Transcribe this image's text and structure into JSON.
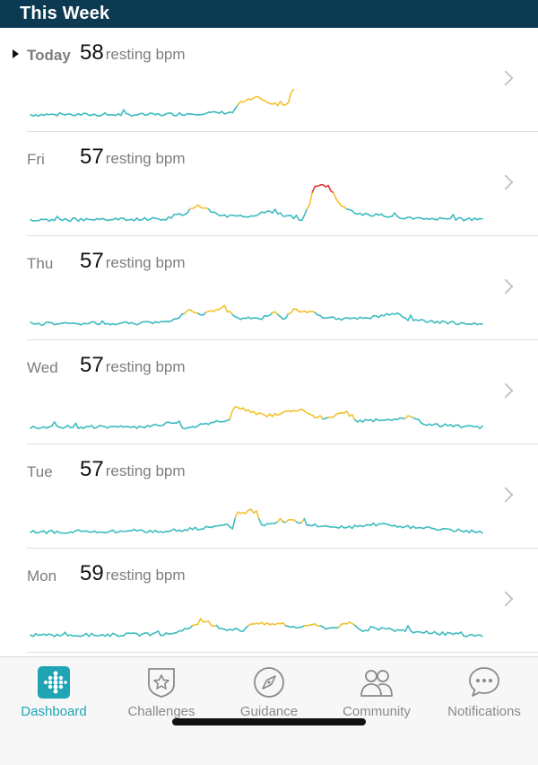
{
  "header": {
    "title": "This Week"
  },
  "days": [
    {
      "label": "Today",
      "is_today": true,
      "bpm": "58",
      "unit": "resting bpm",
      "profile": [
        [
          0,
          0.12
        ],
        [
          0.28,
          0.12
        ],
        [
          0.45,
          0.18
        ],
        [
          0.46,
          0.4
        ],
        [
          0.5,
          0.55
        ],
        [
          0.53,
          0.38
        ],
        [
          0.57,
          0.4
        ],
        [
          0.58,
          0.8
        ],
        [
          0.61,
          0.78
        ],
        [
          0.62,
          0.1
        ],
        [
          0.63,
          0.12
        ]
      ],
      "end": 0.58
    },
    {
      "label": "Fri",
      "is_today": false,
      "bpm": "57",
      "unit": "resting bpm",
      "profile": [
        [
          0,
          0.08
        ],
        [
          0.3,
          0.12
        ],
        [
          0.34,
          0.25
        ],
        [
          0.37,
          0.45
        ],
        [
          0.42,
          0.2
        ],
        [
          0.49,
          0.2
        ],
        [
          0.53,
          0.3
        ],
        [
          0.6,
          0.1
        ],
        [
          0.615,
          0.4
        ],
        [
          0.625,
          0.82
        ],
        [
          0.63,
          0.95
        ],
        [
          0.66,
          0.95
        ],
        [
          0.67,
          0.75
        ],
        [
          0.69,
          0.42
        ],
        [
          0.72,
          0.25
        ],
        [
          0.78,
          0.2
        ],
        [
          0.85,
          0.12
        ],
        [
          1,
          0.1
        ]
      ],
      "end": 1
    },
    {
      "label": "Thu",
      "is_today": false,
      "bpm": "57",
      "unit": "resting bpm",
      "profile": [
        [
          0,
          0.1
        ],
        [
          0.28,
          0.12
        ],
        [
          0.32,
          0.22
        ],
        [
          0.35,
          0.45
        ],
        [
          0.38,
          0.35
        ],
        [
          0.42,
          0.5
        ],
        [
          0.46,
          0.25
        ],
        [
          0.52,
          0.22
        ],
        [
          0.54,
          0.4
        ],
        [
          0.56,
          0.22
        ],
        [
          0.58,
          0.45
        ],
        [
          0.62,
          0.4
        ],
        [
          0.65,
          0.25
        ],
        [
          0.72,
          0.22
        ],
        [
          0.77,
          0.3
        ],
        [
          0.8,
          0.35
        ],
        [
          0.84,
          0.2
        ],
        [
          1,
          0.08
        ]
      ],
      "end": 1
    },
    {
      "label": "Wed",
      "is_today": false,
      "bpm": "57",
      "unit": "resting bpm",
      "profile": [
        [
          0,
          0.12
        ],
        [
          0.25,
          0.12
        ],
        [
          0.3,
          0.2
        ],
        [
          0.33,
          0.25
        ],
        [
          0.34,
          0.05
        ],
        [
          0.35,
          0.12
        ],
        [
          0.44,
          0.3
        ],
        [
          0.45,
          0.62
        ],
        [
          0.48,
          0.55
        ],
        [
          0.52,
          0.4
        ],
        [
          0.57,
          0.5
        ],
        [
          0.6,
          0.58
        ],
        [
          0.62,
          0.4
        ],
        [
          0.66,
          0.35
        ],
        [
          0.7,
          0.5
        ],
        [
          0.72,
          0.28
        ],
        [
          0.78,
          0.3
        ],
        [
          0.84,
          0.38
        ],
        [
          0.88,
          0.18
        ],
        [
          1,
          0.12
        ]
      ],
      "end": 1
    },
    {
      "label": "Tue",
      "is_today": false,
      "bpm": "57",
      "unit": "resting bpm",
      "profile": [
        [
          0,
          0.1
        ],
        [
          0.3,
          0.12
        ],
        [
          0.38,
          0.2
        ],
        [
          0.43,
          0.32
        ],
        [
          0.45,
          0.18
        ],
        [
          0.455,
          0.6
        ],
        [
          0.5,
          0.62
        ],
        [
          0.51,
          0.25
        ],
        [
          0.55,
          0.35
        ],
        [
          0.58,
          0.4
        ],
        [
          0.62,
          0.28
        ],
        [
          0.7,
          0.22
        ],
        [
          0.77,
          0.3
        ],
        [
          0.85,
          0.22
        ],
        [
          1,
          0.1
        ]
      ],
      "end": 1
    },
    {
      "label": "Mon",
      "is_today": false,
      "bpm": "59",
      "unit": "resting bpm",
      "profile": [
        [
          0,
          0.12
        ],
        [
          0.3,
          0.15
        ],
        [
          0.35,
          0.28
        ],
        [
          0.38,
          0.48
        ],
        [
          0.42,
          0.3
        ],
        [
          0.47,
          0.25
        ],
        [
          0.49,
          0.45
        ],
        [
          0.52,
          0.4
        ],
        [
          0.56,
          0.42
        ],
        [
          0.58,
          0.3
        ],
        [
          0.62,
          0.4
        ],
        [
          0.66,
          0.3
        ],
        [
          0.7,
          0.4
        ],
        [
          0.71,
          0.45
        ],
        [
          0.73,
          0.25
        ],
        [
          0.77,
          0.3
        ],
        [
          0.84,
          0.22
        ],
        [
          0.9,
          0.18
        ],
        [
          1,
          0.1
        ]
      ],
      "end": 1
    }
  ],
  "colors": {
    "baseline": "#3fbcc0",
    "elevated": "#f2c230",
    "peak": "#e03a31",
    "accent": "#1fa4b4"
  },
  "tabs": [
    {
      "label": "Dashboard",
      "icon": "dashboard-icon",
      "active": true
    },
    {
      "label": "Challenges",
      "icon": "star-badge-icon",
      "active": false
    },
    {
      "label": "Guidance",
      "icon": "compass-icon",
      "active": false
    },
    {
      "label": "Community",
      "icon": "people-icon",
      "active": false
    },
    {
      "label": "Notifications",
      "icon": "speech-bubble-icon",
      "active": false
    }
  ]
}
